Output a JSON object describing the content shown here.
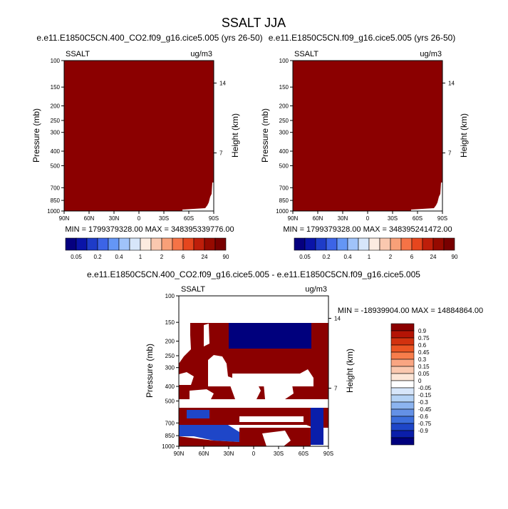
{
  "title": "SSALT JJA",
  "chart_data": [
    {
      "type": "heatmap",
      "title": "e.e11.E1850C5CN.400_CO2.f09_g16.cice5.005 (yrs 26-50)",
      "variable_label": "SSALT",
      "units": "ug/m3",
      "xlabel": "",
      "ylabel": "Pressure (mb)",
      "right_label": "Height (km)",
      "x_ticks": [
        "90N",
        "60N",
        "30N",
        "0",
        "30S",
        "60S",
        "90S"
      ],
      "y_ticks": [
        100,
        150,
        200,
        250,
        300,
        400,
        500,
        700,
        850,
        1000
      ],
      "height_ticks": [
        "14",
        "7"
      ],
      "ylim": [
        1000,
        100
      ],
      "stats": "MIN = 1799379328.00   MAX = 348395339776.00",
      "colorbar_labels": [
        "0.05",
        "0.2",
        "0.4",
        "1",
        "2",
        "6",
        "24",
        "90"
      ],
      "colorbar_colors": [
        "#05007f",
        "#0a14a8",
        "#1e3cc8",
        "#3c64e6",
        "#6496f5",
        "#a0c3fa",
        "#d7e6fa",
        "#fcebe0",
        "#fac8af",
        "#f8a078",
        "#f57346",
        "#e6461e",
        "#be1e0a",
        "#960a00",
        "#780000"
      ],
      "field_summary": "uniform top colorbar class across domain"
    },
    {
      "type": "heatmap",
      "title": "e.e11.E1850C5CN.f09_g16.cice5.005 (yrs 26-50)",
      "variable_label": "SSALT",
      "units": "ug/m3",
      "xlabel": "",
      "ylabel": "Pressure (mb)",
      "right_label": "Height (km)",
      "x_ticks": [
        "90N",
        "60N",
        "30N",
        "0",
        "30S",
        "60S",
        "90S"
      ],
      "y_ticks": [
        100,
        150,
        200,
        250,
        300,
        400,
        500,
        700,
        850,
        1000
      ],
      "height_ticks": [
        "14",
        "7"
      ],
      "ylim": [
        1000,
        100
      ],
      "stats": "MIN = 1799379328.00   MAX = 348395241472.00",
      "colorbar_labels": [
        "0.05",
        "0.2",
        "0.4",
        "1",
        "2",
        "6",
        "24",
        "90"
      ],
      "colorbar_colors": [
        "#05007f",
        "#0a14a8",
        "#1e3cc8",
        "#3c64e6",
        "#6496f5",
        "#a0c3fa",
        "#d7e6fa",
        "#fcebe0",
        "#fac8af",
        "#f8a078",
        "#f57346",
        "#e6461e",
        "#be1e0a",
        "#960a00",
        "#780000"
      ],
      "field_summary": "uniform top colorbar class across domain"
    },
    {
      "type": "heatmap",
      "title": "e.e11.E1850C5CN.400_CO2.f09_g16.cice5.005 - e.e11.E1850C5CN.f09_g16.cice5.005",
      "variable_label": "SSALT",
      "units": "ug/m3",
      "xlabel": "",
      "ylabel": "Pressure (mb)",
      "right_label": "Height (km)",
      "x_ticks": [
        "90N",
        "60N",
        "30N",
        "0",
        "30S",
        "60S",
        "90S"
      ],
      "y_ticks": [
        100,
        150,
        200,
        250,
        300,
        400,
        500,
        700,
        850,
        1000
      ],
      "height_ticks": [
        "14",
        "7"
      ],
      "ylim": [
        1000,
        100
      ],
      "stats": "MIN = -18939904.00   MAX = 14884864.00",
      "colorbar_labels": [
        "0.9",
        "0.75",
        "0.6",
        "0.45",
        "0.3",
        "0.15",
        "0.05",
        "0",
        "-0.05",
        "-0.15",
        "-0.3",
        "-0.45",
        "-0.6",
        "-0.75",
        "-0.9"
      ],
      "colorbar_colors": [
        "#8b0000",
        "#b41405",
        "#d2320f",
        "#eb5523",
        "#f77d4b",
        "#f9a582",
        "#fac8af",
        "#fce6d7",
        "#ffffff",
        "#d7e6fa",
        "#b4d2f5",
        "#8cb4f0",
        "#6491e6",
        "#3c6edc",
        "#1e46c8",
        "#0a1eaa",
        "#00007d"
      ],
      "field_summary": "banded positive and negative difference regions; blank above 150 mb"
    }
  ]
}
